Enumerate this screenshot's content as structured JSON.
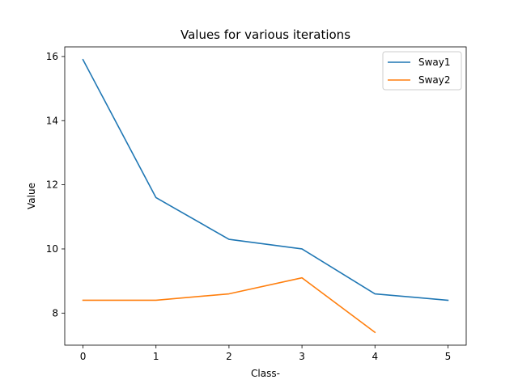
{
  "chart_data": {
    "type": "line",
    "title": "Values for various iterations",
    "xlabel": "Class-",
    "ylabel": "Value",
    "x": [
      0,
      1,
      2,
      3,
      4,
      5
    ],
    "xlim": [
      -0.25,
      5.25
    ],
    "ylim": [
      7.0,
      16.3
    ],
    "xticks": [
      0,
      1,
      2,
      3,
      4,
      5
    ],
    "yticks": [
      8,
      10,
      12,
      14,
      16
    ],
    "grid": false,
    "legend_position": "top-right",
    "series": [
      {
        "name": "Sway1",
        "color": "#1f77b4",
        "x": [
          0,
          1,
          2,
          3,
          4,
          5
        ],
        "values": [
          15.9,
          11.6,
          10.3,
          10.0,
          8.6,
          8.4
        ]
      },
      {
        "name": "Sway2",
        "color": "#ff7f0e",
        "x": [
          0,
          1,
          2,
          3,
          4
        ],
        "values": [
          8.4,
          8.4,
          8.6,
          9.1,
          7.4
        ]
      }
    ]
  }
}
